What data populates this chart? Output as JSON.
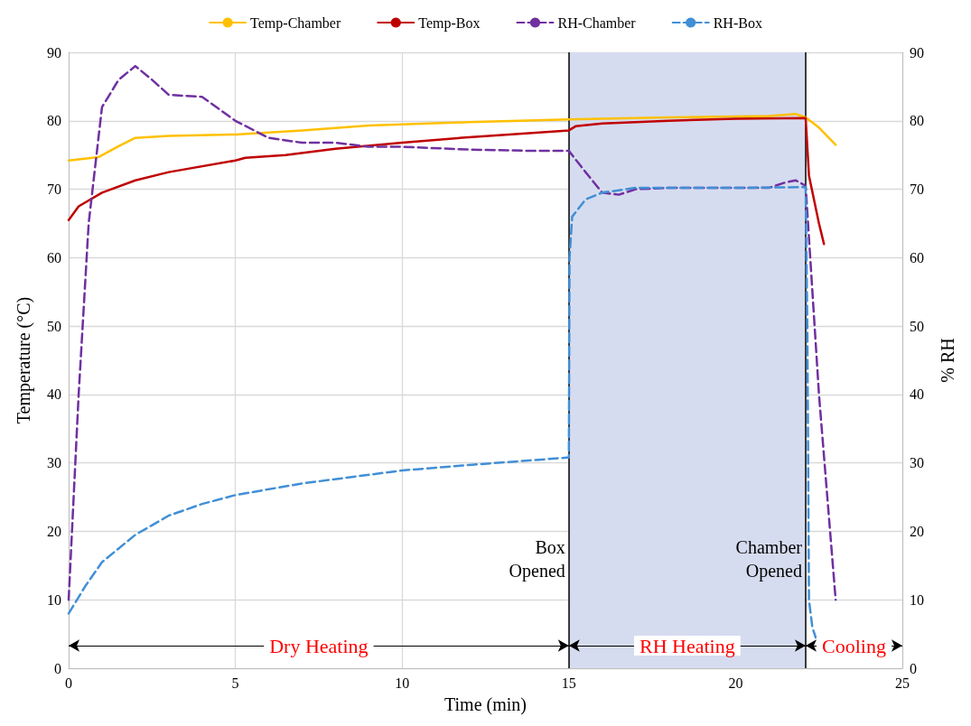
{
  "chart_data": {
    "type": "line",
    "xlabel": "Time (min)",
    "ylabel": "Temperature (°C)",
    "y2label": "% RH",
    "xlim": [
      0,
      25
    ],
    "xticks": [
      0,
      5,
      10,
      15,
      20,
      25
    ],
    "ylim": [
      0,
      90
    ],
    "yticks": [
      0,
      10,
      20,
      30,
      40,
      50,
      60,
      70,
      80,
      90
    ],
    "y2lim": [
      0,
      90
    ],
    "y2ticks": [
      0,
      10,
      20,
      30,
      40,
      50,
      60,
      70,
      80,
      90
    ],
    "grid": true,
    "legend": "top",
    "marker": "none",
    "series": [
      {
        "name": "Temp-Chamber",
        "color": "#ffc000",
        "line_style": "solid",
        "x": [
          0,
          0.9,
          1.5,
          2,
          3,
          5,
          7,
          9,
          12,
          15,
          18,
          21,
          21.8,
          22.1,
          22.5,
          23
        ],
        "values": [
          74.2,
          74.7,
          76.3,
          77.5,
          77.8,
          78,
          78.6,
          79.3,
          79.8,
          80.2,
          80.5,
          80.7,
          81,
          80.5,
          79,
          76.5
        ]
      },
      {
        "name": "Temp-Box",
        "color": "#c00000",
        "line_style": "solid",
        "x": [
          0,
          0.3,
          1,
          2,
          3,
          5,
          5.3,
          6.5,
          8,
          10,
          12,
          15,
          15.2,
          16,
          18,
          20,
          22.1,
          22.2,
          22.5,
          22.65
        ],
        "values": [
          65.5,
          67.5,
          69.5,
          71.3,
          72.5,
          74.2,
          74.6,
          75,
          75.9,
          76.8,
          77.6,
          78.6,
          79.2,
          79.6,
          80,
          80.3,
          80.4,
          72,
          65,
          62
        ]
      },
      {
        "name": "RH-Chamber",
        "color": "#7030a0",
        "line_style": "dashed",
        "axis": "y2",
        "x": [
          0,
          0.3,
          0.6,
          1,
          1.5,
          2,
          2.5,
          3,
          4,
          5,
          6,
          7,
          8,
          9,
          10,
          12,
          14,
          15,
          15.5,
          16,
          16.5,
          17,
          18,
          20,
          21,
          21.5,
          21.8,
          22.1,
          22.5,
          23
        ],
        "values": [
          10,
          40,
          65,
          82,
          86,
          88,
          86,
          83.8,
          83.5,
          80,
          77.5,
          76.8,
          76.8,
          76.2,
          76.2,
          75.8,
          75.6,
          75.6,
          72.5,
          69.5,
          69.2,
          70,
          70.2,
          70.2,
          70.2,
          71,
          71.3,
          70.5,
          40,
          10
        ]
      },
      {
        "name": "RH-Box",
        "color": "#418fd6",
        "line_style": "dashed",
        "axis": "y2",
        "x": [
          0,
          0.5,
          1,
          2,
          3,
          4,
          5,
          7,
          10,
          12,
          15,
          15.02,
          15.1,
          15.5,
          16,
          17,
          20,
          22.1,
          22.15,
          22.2,
          22.3,
          22.4
        ],
        "values": [
          8,
          12,
          15.5,
          19.5,
          22.3,
          24,
          25.3,
          27,
          28.9,
          29.7,
          30.8,
          60,
          66,
          68.5,
          69.5,
          70.2,
          70.2,
          70.3,
          50,
          10,
          6,
          4.5
        ]
      }
    ],
    "ref_lines": [
      {
        "axis": "x",
        "value": 15,
        "label": "Box Opened",
        "color": "#000000"
      },
      {
        "axis": "x",
        "value": 22.1,
        "label": "Chamber Opened",
        "color": "#000000"
      }
    ],
    "bands": [
      {
        "axis": "x",
        "from": 15,
        "to": 22.1,
        "color": "#d6dcef"
      }
    ],
    "annotations": [
      "Dry Heating",
      "RH Heating",
      "Cooling"
    ]
  }
}
